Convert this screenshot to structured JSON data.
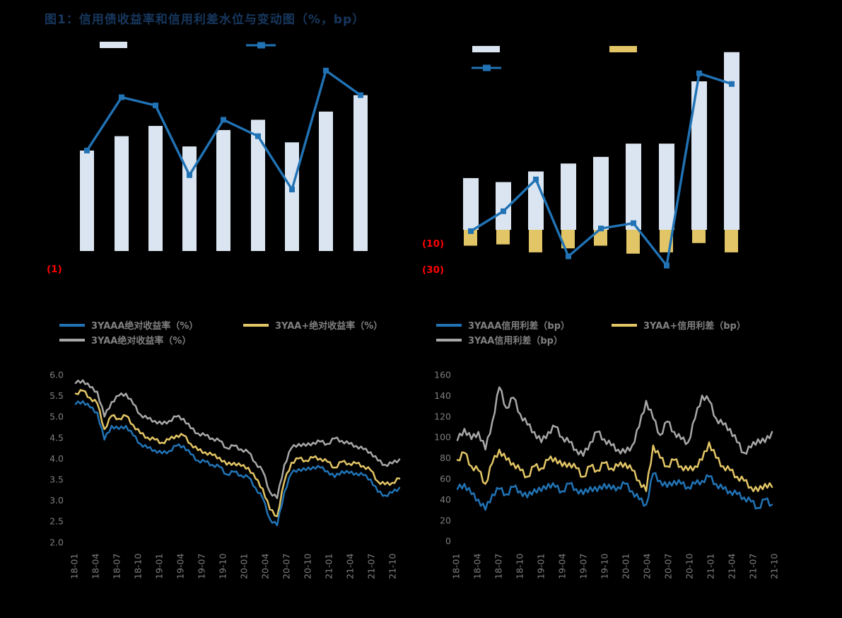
{
  "title": "图1：信用债收益率和信用利差水位与变动图（%，bp）",
  "colors": {
    "background": "#000000",
    "title_text": "#17375e",
    "bar_light": "#dbe5f1",
    "line_blue": "#2173b5",
    "series_yellow": "#e2c566",
    "series_gray": "#a7a7a7",
    "axis_text": "#7f7f7f",
    "legend_text": "#808080",
    "negative_axis_label_red": "#ff0000"
  },
  "chart_data": [
    {
      "id": "yield-level-change",
      "type": "bar+line",
      "categories": [
        "",
        "",
        "",
        "",
        "",
        "",
        "",
        "",
        ""
      ],
      "bars": {
        "name": "",
        "values": [
          4.9,
          5.6,
          6.1,
          5.1,
          5.9,
          6.4,
          5.3,
          6.8,
          7.6
        ]
      },
      "line": {
        "name": "",
        "values": [
          4.9,
          7.5,
          7.1,
          3.7,
          6.4,
          5.6,
          3.0,
          8.8,
          7.6
        ]
      },
      "ylim": [
        -1,
        10.2
      ],
      "visible_axis_labels": [
        "(1)"
      ],
      "legend": [
        {
          "swatch": "bar"
        },
        {
          "swatch": "line-marker"
        }
      ],
      "grid": false
    },
    {
      "id": "spread-level-change",
      "type": "bar+line",
      "categories": [
        "",
        "",
        "",
        "",
        "",
        "",
        "",
        "",
        ""
      ],
      "bars_level": {
        "name": "",
        "values": [
          39,
          36,
          44,
          50,
          55,
          65,
          65,
          112,
          134
        ]
      },
      "bars_change": {
        "name": "",
        "values": [
          -12,
          -11,
          -17,
          -14,
          -12,
          -18,
          -17,
          -10,
          -17
        ]
      },
      "line": {
        "name": "",
        "values": [
          -1,
          14,
          38,
          -20,
          1,
          5,
          -27,
          118,
          110
        ]
      },
      "ylim": [
        -33,
        140
      ],
      "visible_axis_labels": [
        "(10)",
        "(30)"
      ],
      "legend": [
        {
          "swatch": "bar-light"
        },
        {
          "swatch": "bar-yellow"
        },
        {
          "swatch": "line-marker"
        }
      ],
      "grid": false
    },
    {
      "id": "absolute-yield-3y",
      "type": "line",
      "x_labels": [
        "18-01",
        "18-04",
        "18-07",
        "18-10",
        "19-01",
        "19-04",
        "19-07",
        "19-10",
        "20-01",
        "20-04",
        "20-07",
        "20-10",
        "21-01",
        "21-04",
        "21-07",
        "21-10"
      ],
      "yticks": [
        "6.0",
        "5.5",
        "5.0",
        "4.5",
        "4.0",
        "3.5",
        "3.0",
        "2.5",
        "2.0"
      ],
      "ylim": [
        2.0,
        6.0
      ],
      "grid": false,
      "legend_position": "top",
      "jitter": 0.04,
      "series": [
        {
          "name": "3YAAA绝对收益率（%）",
          "color": "#2173b5",
          "values": [
            5.3,
            5.37,
            5.22,
            5.1,
            4.45,
            4.78,
            4.7,
            4.78,
            4.55,
            4.35,
            4.25,
            4.2,
            4.12,
            4.18,
            4.3,
            4.3,
            4.1,
            3.95,
            3.92,
            3.85,
            3.8,
            3.62,
            3.68,
            3.6,
            3.55,
            3.3,
            3.05,
            2.55,
            2.4,
            3.2,
            3.65,
            3.75,
            3.72,
            3.8,
            3.78,
            3.7,
            3.55,
            3.7,
            3.65,
            3.65,
            3.6,
            3.5,
            3.2,
            3.12,
            3.18,
            3.3
          ]
        },
        {
          "name": "3YAA+绝对收益率（%）",
          "color": "#e2c566",
          "values": [
            5.55,
            5.62,
            5.45,
            5.32,
            4.7,
            5.02,
            4.95,
            5.02,
            4.8,
            4.6,
            4.5,
            4.45,
            4.38,
            4.45,
            4.55,
            4.55,
            4.35,
            4.2,
            4.15,
            4.08,
            4.02,
            3.85,
            3.9,
            3.82,
            3.78,
            3.52,
            3.28,
            2.78,
            2.62,
            3.45,
            3.9,
            4.0,
            3.95,
            4.02,
            4.0,
            3.92,
            3.78,
            3.92,
            3.88,
            3.88,
            3.82,
            3.72,
            3.45,
            3.38,
            3.42,
            3.52
          ]
        },
        {
          "name": "3YAA绝对收益率（%）",
          "color": "#a7a7a7",
          "values": [
            5.8,
            5.87,
            5.7,
            5.6,
            5.0,
            5.35,
            5.5,
            5.55,
            5.3,
            5.05,
            4.95,
            4.9,
            4.82,
            4.9,
            5.0,
            4.95,
            4.72,
            4.6,
            4.55,
            4.48,
            4.42,
            4.25,
            4.3,
            4.22,
            4.15,
            3.9,
            3.7,
            3.2,
            3.05,
            3.85,
            4.25,
            4.35,
            4.3,
            4.38,
            4.4,
            4.35,
            4.48,
            4.42,
            4.35,
            4.3,
            4.22,
            4.15,
            3.95,
            3.85,
            3.88,
            3.98
          ]
        }
      ]
    },
    {
      "id": "credit-spread-3y",
      "type": "line",
      "x_labels": [
        "18-01",
        "18-04",
        "18-07",
        "18-10",
        "19-01",
        "19-04",
        "19-07",
        "19-10",
        "20-01",
        "20-04",
        "20-07",
        "20-10",
        "21-01",
        "21-04",
        "21-07",
        "21-10"
      ],
      "yticks": [
        "160",
        "140",
        "120",
        "100",
        "80",
        "60",
        "40",
        "20",
        "0"
      ],
      "ylim": [
        0,
        160
      ],
      "grid": false,
      "legend_position": "top",
      "jitter": 2.8,
      "series": [
        {
          "name": "3YAAA信用利差（bp）",
          "color": "#2173b5",
          "values": [
            50,
            55,
            45,
            40,
            30,
            45,
            50,
            45,
            52,
            48,
            42,
            50,
            48,
            55,
            52,
            48,
            55,
            50,
            45,
            52,
            48,
            55,
            50,
            52,
            55,
            48,
            40,
            35,
            65,
            58,
            52,
            58,
            55,
            52,
            55,
            58,
            62,
            55,
            50,
            48,
            45,
            42,
            38,
            32,
            40,
            35
          ]
        },
        {
          "name": "3YAA+信用利差（bp）",
          "color": "#e2c566",
          "values": [
            78,
            85,
            72,
            68,
            55,
            75,
            88,
            78,
            75,
            68,
            62,
            72,
            70,
            78,
            80,
            72,
            75,
            70,
            62,
            72,
            68,
            75,
            70,
            72,
            75,
            68,
            58,
            48,
            92,
            80,
            72,
            78,
            72,
            68,
            72,
            78,
            95,
            80,
            72,
            68,
            62,
            58,
            52,
            48,
            55,
            52
          ]
        },
        {
          "name": "3YAA信用利差（bp）",
          "color": "#a7a7a7",
          "values": [
            97,
            108,
            98,
            105,
            88,
            115,
            148,
            128,
            138,
            122,
            112,
            105,
            95,
            105,
            110,
            100,
            95,
            88,
            82,
            95,
            105,
            98,
            92,
            88,
            85,
            92,
            110,
            135,
            118,
            102,
            115,
            105,
            98,
            95,
            118,
            140,
            135,
            118,
            112,
            108,
            95,
            85,
            90,
            98,
            95,
            105
          ]
        }
      ]
    }
  ]
}
